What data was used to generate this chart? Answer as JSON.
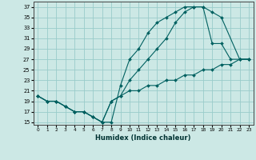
{
  "xlabel": "Humidex (Indice chaleur)",
  "bg_color": "#cce8e5",
  "grid_color": "#99ccca",
  "line_color": "#006060",
  "xlim": [
    -0.5,
    23.5
  ],
  "ylim": [
    14.5,
    38
  ],
  "xticks": [
    0,
    1,
    2,
    3,
    4,
    5,
    6,
    7,
    8,
    9,
    10,
    11,
    12,
    13,
    14,
    15,
    16,
    17,
    18,
    19,
    20,
    21,
    22,
    23
  ],
  "yticks": [
    15,
    17,
    19,
    21,
    23,
    25,
    27,
    29,
    31,
    33,
    35,
    37
  ],
  "line1_x": [
    0,
    1,
    2,
    3,
    4,
    5,
    6,
    7,
    8,
    9,
    10,
    11,
    12,
    13,
    14,
    15,
    16,
    17,
    18,
    19,
    20,
    22,
    23
  ],
  "line1_y": [
    20,
    19,
    19,
    18,
    17,
    17,
    16,
    15,
    15,
    22,
    27,
    29,
    32,
    34,
    35,
    36,
    37,
    37,
    37,
    36,
    35,
    27,
    27
  ],
  "line2_x": [
    0,
    1,
    2,
    3,
    4,
    5,
    6,
    7,
    8,
    9,
    10,
    11,
    12,
    13,
    14,
    15,
    16,
    17,
    18,
    19,
    20,
    21,
    22,
    23
  ],
  "line2_y": [
    20,
    19,
    19,
    18,
    17,
    17,
    16,
    15,
    19,
    20,
    23,
    25,
    27,
    29,
    31,
    34,
    36,
    37,
    37,
    30,
    30,
    27,
    27,
    27
  ],
  "line3_x": [
    0,
    1,
    2,
    3,
    4,
    5,
    6,
    7,
    8,
    9,
    10,
    11,
    12,
    13,
    14,
    15,
    16,
    17,
    18,
    19,
    20,
    21,
    22,
    23
  ],
  "line3_y": [
    20,
    19,
    19,
    18,
    17,
    17,
    16,
    15,
    19,
    20,
    21,
    21,
    22,
    22,
    23,
    23,
    24,
    24,
    25,
    25,
    26,
    26,
    27,
    27
  ]
}
